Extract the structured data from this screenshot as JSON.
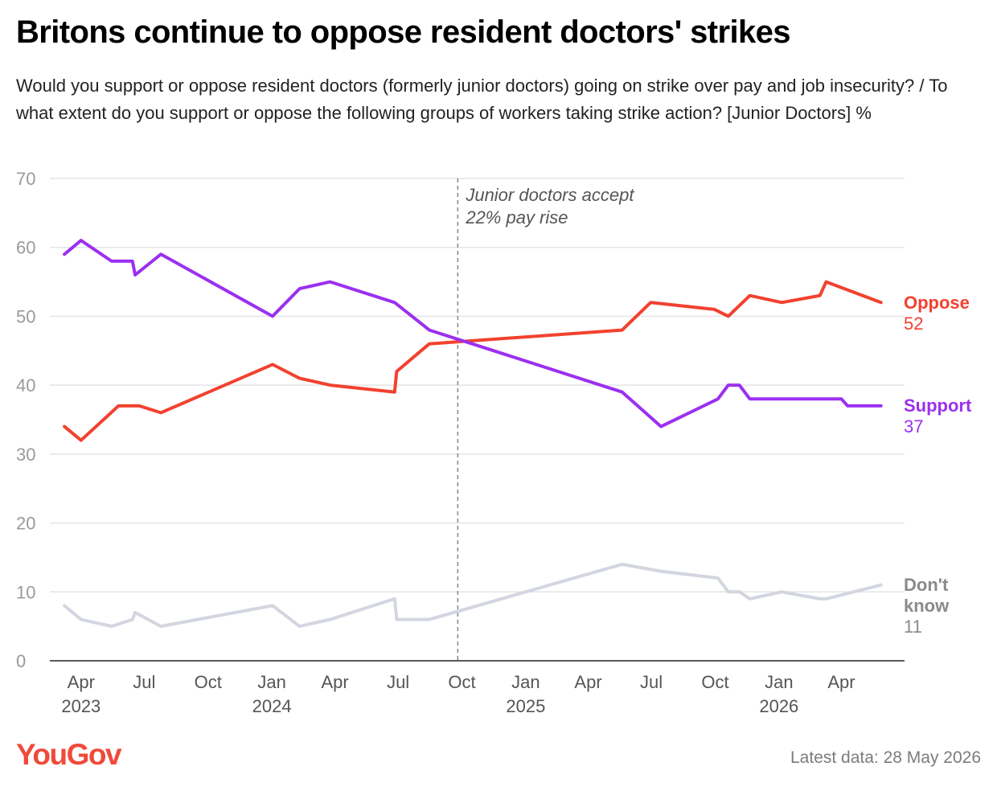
{
  "title": "Britons continue to oppose resident doctors' strikes",
  "subtitle": "Would you support or oppose resident doctors (formerly junior doctors) going on strike over pay and job insecurity? / To what extent do you support or oppose the following groups of workers taking strike action? [Junior Doctors] %",
  "footer": {
    "logo": "YouGov",
    "latest": "Latest data: 28 May 2026"
  },
  "colors": {
    "oppose": "#f2412f",
    "support": "#9b30f0",
    "dont_know": "#d3d6e1",
    "grid": "#e4e4e4",
    "axis": "#222222",
    "tick_text": "#9a9a9a",
    "x_tick_text": "#555555",
    "annotation": "#555555",
    "brand": "#ef4a3a"
  },
  "chart_data": {
    "type": "line",
    "x_type": "date",
    "ylim": [
      0,
      70
    ],
    "yticks": [
      0,
      10,
      20,
      30,
      40,
      50,
      60,
      70
    ],
    "grid": true,
    "xlim": [
      "2023-02-15",
      "2026-07-01"
    ],
    "xticks": [
      {
        "date": "2023-04-01",
        "label": "Apr",
        "year": "2023"
      },
      {
        "date": "2023-07-01",
        "label": "Jul",
        "year": ""
      },
      {
        "date": "2023-10-01",
        "label": "Oct",
        "year": ""
      },
      {
        "date": "2024-01-01",
        "label": "Jan",
        "year": "2024"
      },
      {
        "date": "2024-04-01",
        "label": "Apr",
        "year": ""
      },
      {
        "date": "2024-07-01",
        "label": "Jul",
        "year": ""
      },
      {
        "date": "2024-10-01",
        "label": "Oct",
        "year": ""
      },
      {
        "date": "2025-01-01",
        "label": "Jan",
        "year": "2025"
      },
      {
        "date": "2025-04-01",
        "label": "Apr",
        "year": ""
      },
      {
        "date": "2025-07-01",
        "label": "Jul",
        "year": ""
      },
      {
        "date": "2025-10-01",
        "label": "Oct",
        "year": ""
      },
      {
        "date": "2026-01-01",
        "label": "Jan",
        "year": "2026"
      },
      {
        "date": "2026-04-01",
        "label": "Apr",
        "year": ""
      }
    ],
    "annotation": {
      "date": "2024-09-25",
      "lines": [
        "Junior doctors accept",
        "22% pay rise"
      ]
    },
    "series": [
      {
        "key": "oppose",
        "name": "Oppose",
        "end_label": [
          "Oppose"
        ],
        "last_value": "52",
        "points": [
          [
            "2023-03-08",
            34
          ],
          [
            "2023-04-01",
            32
          ],
          [
            "2023-05-25",
            37
          ],
          [
            "2023-06-24",
            37
          ],
          [
            "2023-07-25",
            36
          ],
          [
            "2024-01-02",
            43
          ],
          [
            "2024-02-10",
            41
          ],
          [
            "2024-03-25",
            40
          ],
          [
            "2024-06-26",
            39
          ],
          [
            "2024-06-29",
            42
          ],
          [
            "2024-08-15",
            46
          ],
          [
            "2025-05-20",
            48
          ],
          [
            "2025-06-30",
            52
          ],
          [
            "2025-09-30",
            51
          ],
          [
            "2025-10-20",
            50
          ],
          [
            "2025-11-20",
            53
          ],
          [
            "2026-01-05",
            52
          ],
          [
            "2026-03-01",
            53
          ],
          [
            "2026-03-10",
            55
          ],
          [
            "2026-05-28",
            52
          ]
        ]
      },
      {
        "key": "support",
        "name": "Support",
        "end_label": [
          "Support"
        ],
        "last_value": "37",
        "points": [
          [
            "2023-03-08",
            59
          ],
          [
            "2023-04-01",
            61
          ],
          [
            "2023-05-15",
            58
          ],
          [
            "2023-06-14",
            58
          ],
          [
            "2023-06-18",
            56
          ],
          [
            "2023-07-25",
            59
          ],
          [
            "2024-01-02",
            50
          ],
          [
            "2024-02-10",
            54
          ],
          [
            "2024-03-25",
            55
          ],
          [
            "2024-06-26",
            52
          ],
          [
            "2024-08-15",
            48
          ],
          [
            "2025-05-20",
            39
          ],
          [
            "2025-07-15",
            34
          ],
          [
            "2025-10-05",
            38
          ],
          [
            "2025-10-20",
            40
          ],
          [
            "2025-11-05",
            40
          ],
          [
            "2025-11-20",
            38
          ],
          [
            "2026-04-01",
            38
          ],
          [
            "2026-04-10",
            37
          ],
          [
            "2026-05-28",
            37
          ]
        ]
      },
      {
        "key": "dont_know",
        "name": "Don't know",
        "end_label": [
          "Don't",
          "know"
        ],
        "last_value": "11",
        "points": [
          [
            "2023-03-08",
            8
          ],
          [
            "2023-04-01",
            6
          ],
          [
            "2023-05-15",
            5
          ],
          [
            "2023-06-14",
            6
          ],
          [
            "2023-06-18",
            7
          ],
          [
            "2023-07-25",
            5
          ],
          [
            "2024-01-02",
            8
          ],
          [
            "2024-02-10",
            5
          ],
          [
            "2024-03-25",
            6
          ],
          [
            "2024-06-26",
            9
          ],
          [
            "2024-06-29",
            6
          ],
          [
            "2024-08-15",
            6
          ],
          [
            "2025-05-20",
            14
          ],
          [
            "2025-07-15",
            13
          ],
          [
            "2025-10-05",
            12
          ],
          [
            "2025-10-20",
            10
          ],
          [
            "2025-11-05",
            10
          ],
          [
            "2025-11-20",
            9
          ],
          [
            "2026-01-05",
            10
          ],
          [
            "2026-03-01",
            9
          ],
          [
            "2026-03-10",
            9
          ],
          [
            "2026-05-28",
            11
          ]
        ]
      }
    ]
  }
}
